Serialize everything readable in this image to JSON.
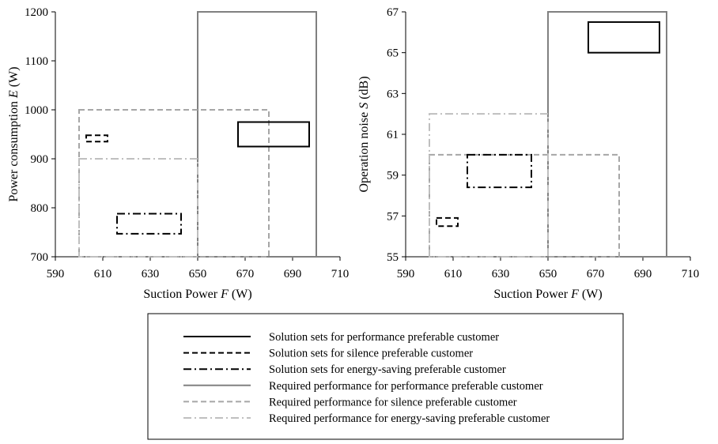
{
  "chart_data": [
    {
      "type": "rectangle-ranges",
      "xlabel": {
        "prefix": "Suction Power ",
        "var": "F",
        "suffix": " (W)"
      },
      "ylabel": {
        "prefix": "Power consumption ",
        "var": "E",
        "suffix": " (W)"
      },
      "xlim": [
        590,
        710
      ],
      "ylim": [
        700,
        1200
      ],
      "xticks": [
        "590",
        "610",
        "630",
        "650",
        "670",
        "690",
        "710"
      ],
      "yticks": [
        "700",
        "800",
        "900",
        "1000",
        "1100",
        "1200"
      ],
      "series": [
        {
          "key": "sol_perf",
          "x": [
            667,
            697
          ],
          "y": [
            925,
            975
          ]
        },
        {
          "key": "sol_silence",
          "x": [
            603,
            612
          ],
          "y": [
            935,
            948
          ]
        },
        {
          "key": "sol_energy",
          "x": [
            616,
            643
          ],
          "y": [
            747,
            788
          ]
        },
        {
          "key": "req_perf",
          "x": [
            650,
            700
          ],
          "y": [
            700,
            1200
          ]
        },
        {
          "key": "req_silence",
          "x": [
            600,
            680
          ],
          "y": [
            700,
            1000
          ]
        },
        {
          "key": "req_energy",
          "x": [
            600,
            650
          ],
          "y": [
            700,
            900
          ]
        }
      ]
    },
    {
      "type": "rectangle-ranges",
      "xlabel": {
        "prefix": "Suction Power ",
        "var": "F",
        "suffix": " (W)"
      },
      "ylabel": {
        "prefix": "Operation noise ",
        "var": "S",
        "suffix": " (dB)"
      },
      "xlim": [
        590,
        710
      ],
      "ylim": [
        55,
        67
      ],
      "xticks": [
        "590",
        "610",
        "630",
        "650",
        "670",
        "690",
        "710"
      ],
      "yticks": [
        "55",
        "57",
        "59",
        "61",
        "63",
        "65",
        "67"
      ],
      "series": [
        {
          "key": "sol_perf",
          "x": [
            667,
            697
          ],
          "y": [
            65,
            66.5
          ]
        },
        {
          "key": "sol_silence",
          "x": [
            603,
            612
          ],
          "y": [
            56.5,
            56.9
          ]
        },
        {
          "key": "sol_energy",
          "x": [
            616,
            643
          ],
          "y": [
            58.4,
            60
          ]
        },
        {
          "key": "req_perf",
          "x": [
            650,
            700
          ],
          "y": [
            55,
            67
          ]
        },
        {
          "key": "req_silence",
          "x": [
            600,
            680
          ],
          "y": [
            55,
            60
          ]
        },
        {
          "key": "req_energy",
          "x": [
            600,
            650
          ],
          "y": [
            55,
            62
          ]
        }
      ]
    }
  ],
  "legend": [
    {
      "key": "sol_perf",
      "label": "Solution sets for performance preferable customer"
    },
    {
      "key": "sol_silence",
      "label": "Solution sets for silence preferable customer"
    },
    {
      "key": "sol_energy",
      "label": "Solution sets for energy-saving preferable customer"
    },
    {
      "key": "req_perf",
      "label": "Required performance for  performance preferable customer"
    },
    {
      "key": "req_silence",
      "label": "Required performance for  silence preferable customer"
    },
    {
      "key": "req_energy",
      "label": "Required performance for  energy-saving preferable customer"
    }
  ],
  "styles": {
    "sol_perf": {
      "color": "#000000",
      "dash": "none"
    },
    "sol_silence": {
      "color": "#000000",
      "dash": "dash"
    },
    "sol_energy": {
      "color": "#000000",
      "dash": "dashdot"
    },
    "req_perf": {
      "color": "#808080",
      "dash": "none"
    },
    "req_silence": {
      "color": "#a6a6a6",
      "dash": "dash"
    },
    "req_energy": {
      "color": "#bfbfbf",
      "dash": "dashdot"
    }
  }
}
